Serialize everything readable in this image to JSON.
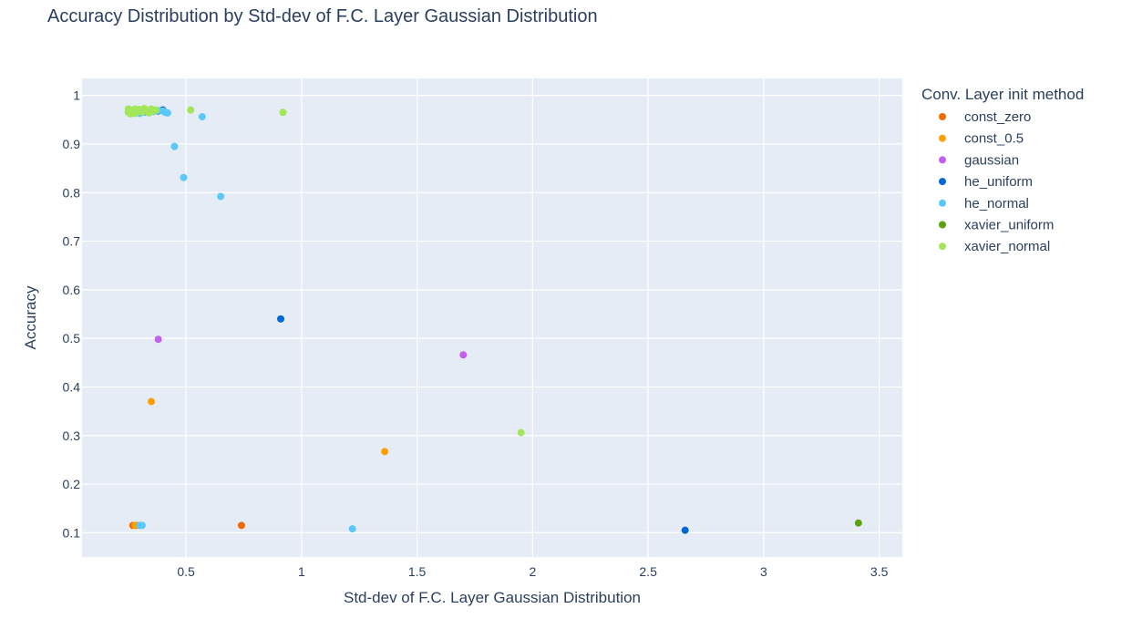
{
  "chart_data": {
    "type": "scatter",
    "title": "Accuracy Distribution by Std-dev of F.C. Layer Gaussian Distribution",
    "xlabel": "Std-dev of F.C. Layer Gaussian Distribution",
    "ylabel": "Accuracy",
    "xlim": [
      0.05,
      3.6
    ],
    "ylim": [
      0.05,
      1.035
    ],
    "x_ticks": [
      0.5,
      1,
      1.5,
      2,
      2.5,
      3,
      3.5
    ],
    "x_tick_labels": [
      "0.5",
      "1",
      "1.5",
      "2",
      "2.5",
      "3",
      "3.5"
    ],
    "y_ticks": [
      0.1,
      0.2,
      0.3,
      0.4,
      0.5,
      0.6,
      0.7,
      0.8,
      0.9,
      1
    ],
    "y_tick_labels": [
      "0.1",
      "0.2",
      "0.3",
      "0.4",
      "0.5",
      "0.6",
      "0.7",
      "0.8",
      "0.9",
      "1"
    ],
    "grid": true,
    "legend_title": "Conv. Layer init method",
    "legend_position": "right",
    "series": [
      {
        "name": "const_zero",
        "color": "#ef6c00",
        "points": [
          [
            0.27,
            0.115
          ],
          [
            0.285,
            0.115
          ],
          [
            0.74,
            0.115
          ]
        ]
      },
      {
        "name": "const_0.5",
        "color": "#ffa000",
        "points": [
          [
            0.35,
            0.37
          ],
          [
            1.36,
            0.267
          ],
          [
            0.28,
            0.115
          ]
        ]
      },
      {
        "name": "gaussian",
        "color": "#c45fef",
        "points": [
          [
            0.38,
            0.498
          ],
          [
            1.7,
            0.466
          ]
        ]
      },
      {
        "name": "he_uniform",
        "color": "#0068d4",
        "points": [
          [
            0.91,
            0.54
          ],
          [
            2.66,
            0.105
          ],
          [
            0.38,
            0.968
          ],
          [
            0.4,
            0.97
          ]
        ]
      },
      {
        "name": "he_normal",
        "color": "#5ac8fa",
        "points": [
          [
            0.3,
            0.963
          ],
          [
            0.32,
            0.965
          ],
          [
            0.34,
            0.966
          ],
          [
            0.36,
            0.967
          ],
          [
            0.38,
            0.969
          ],
          [
            0.4,
            0.968
          ],
          [
            0.41,
            0.965
          ],
          [
            0.42,
            0.964
          ],
          [
            0.57,
            0.956
          ],
          [
            0.45,
            0.895
          ],
          [
            0.49,
            0.831
          ],
          [
            0.65,
            0.792
          ],
          [
            1.22,
            0.108
          ],
          [
            0.3,
            0.115
          ],
          [
            0.31,
            0.115
          ]
        ]
      },
      {
        "name": "xavier_uniform",
        "color": "#5aa30a",
        "points": [
          [
            3.41,
            0.12
          ],
          [
            0.33,
            0.968
          ]
        ]
      },
      {
        "name": "xavier_normal",
        "color": "#a3e65a",
        "points": [
          [
            0.25,
            0.972
          ],
          [
            0.25,
            0.965
          ],
          [
            0.26,
            0.97
          ],
          [
            0.26,
            0.962
          ],
          [
            0.27,
            0.968
          ],
          [
            0.28,
            0.972
          ],
          [
            0.28,
            0.963
          ],
          [
            0.29,
            0.967
          ],
          [
            0.3,
            0.971
          ],
          [
            0.31,
            0.966
          ],
          [
            0.32,
            0.973
          ],
          [
            0.33,
            0.969
          ],
          [
            0.34,
            0.964
          ],
          [
            0.35,
            0.972
          ],
          [
            0.36,
            0.968
          ],
          [
            0.37,
            0.97
          ],
          [
            0.52,
            0.97
          ],
          [
            0.92,
            0.965
          ],
          [
            1.95,
            0.306
          ]
        ]
      }
    ]
  }
}
